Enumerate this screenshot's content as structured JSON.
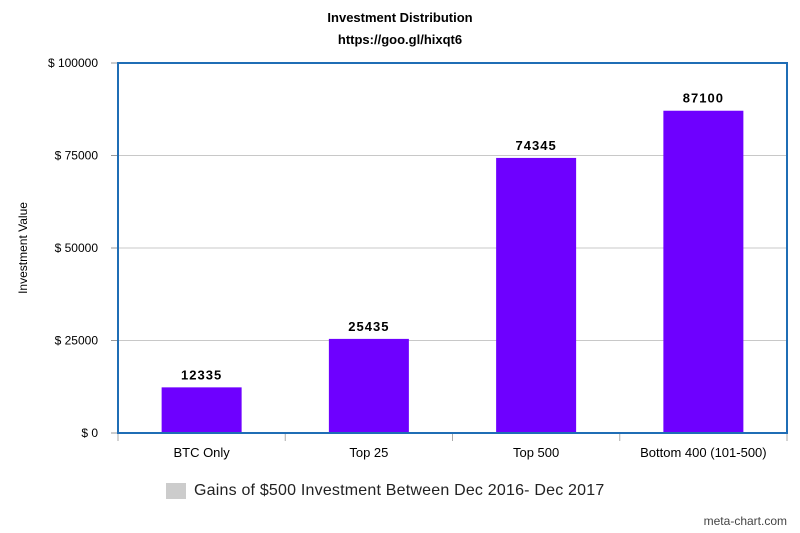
{
  "header": {
    "title": "Investment Distribution",
    "subtitle": "https://goo.gl/hixqt6"
  },
  "legend": {
    "label": "Gains of $500 Investment Between Dec 2016- Dec 2017",
    "swatch_color": "#cccccc"
  },
  "credit": "meta-chart.com",
  "chart_data": {
    "type": "bar",
    "title": "Investment Distribution",
    "subtitle": "https://goo.gl/hixqt6",
    "xlabel": "",
    "ylabel": "Investment Value",
    "categories": [
      "BTC Only",
      "Top 25",
      "Top 500",
      "Bottom 400 (101-500)"
    ],
    "series": [
      {
        "name": "Gains of $500 Investment Between Dec 2016- Dec 2017",
        "values": [
          12335,
          25435,
          74345,
          87100
        ],
        "labels": [
          "12335",
          "25435",
          "74345",
          "87100"
        ]
      }
    ],
    "ylim": [
      0,
      100000
    ],
    "yticks": [
      0,
      25000,
      50000,
      75000,
      100000
    ],
    "ytick_labels": [
      "$ 0",
      "$ 25000",
      "$ 50000",
      "$ 75000",
      "$ 100000"
    ],
    "grid": true,
    "legend_position": "bottom",
    "bar_color": "#6e00ff",
    "frame_color": "#1f6db5",
    "grid_color": "#c8c8c8"
  }
}
